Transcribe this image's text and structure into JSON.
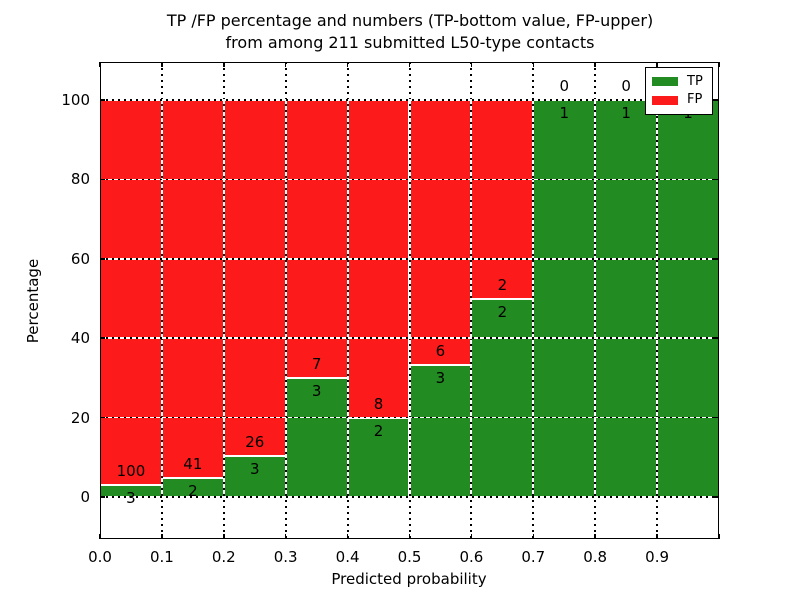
{
  "chart_data": {
    "type": "bar",
    "stacked": true,
    "title_line1": "TP /FP percentage and numbers (TP-bottom value, FP-upper)",
    "title_line2": "from among 211 submitted L50-type contacts",
    "xlabel": "Predicted probability",
    "ylabel": "Percentage",
    "total_submitted_contacts": 211,
    "bin_width": 0.1,
    "xlim": [
      0.0,
      1.0
    ],
    "ylim": [
      -10.6,
      109.6
    ],
    "grid": true,
    "x_tick_labels": [
      "0.0",
      "0.1",
      "0.2",
      "0.3",
      "0.4",
      "0.5",
      "0.6",
      "0.7",
      "0.8",
      "0.9"
    ],
    "y_tick_values": [
      0,
      20,
      40,
      60,
      80,
      100
    ],
    "series": [
      {
        "name": "TP",
        "color": "#228b22"
      },
      {
        "name": "FP",
        "color": "#fc1a1a"
      }
    ],
    "legend": {
      "position": "upper right",
      "entries": [
        "TP",
        "FP"
      ]
    },
    "bins": [
      {
        "range": "0.0-0.1",
        "tp": 3,
        "fp": 100
      },
      {
        "range": "0.1-0.2",
        "tp": 2,
        "fp": 41
      },
      {
        "range": "0.2-0.3",
        "tp": 3,
        "fp": 26
      },
      {
        "range": "0.3-0.4",
        "tp": 3,
        "fp": 7
      },
      {
        "range": "0.4-0.5",
        "tp": 2,
        "fp": 8
      },
      {
        "range": "0.5-0.6",
        "tp": 3,
        "fp": 6
      },
      {
        "range": "0.6-0.7",
        "tp": 2,
        "fp": 2
      },
      {
        "range": "0.7-0.8",
        "tp": 1,
        "fp": 0
      },
      {
        "range": "0.8-0.9",
        "tp": 1,
        "fp": 0
      },
      {
        "range": "0.9-1.0",
        "tp": 1,
        "fp": 0
      }
    ],
    "bar_value_semantics": "each bar stacks TP% (bottom, green) and FP% (top, red) of contacts in that predicted-probability bin; printed numbers are raw counts"
  },
  "colors": {
    "tp_green": "#228b22",
    "fp_red": "#fc1a1a",
    "background": "#ffffff",
    "text": "#000000"
  }
}
